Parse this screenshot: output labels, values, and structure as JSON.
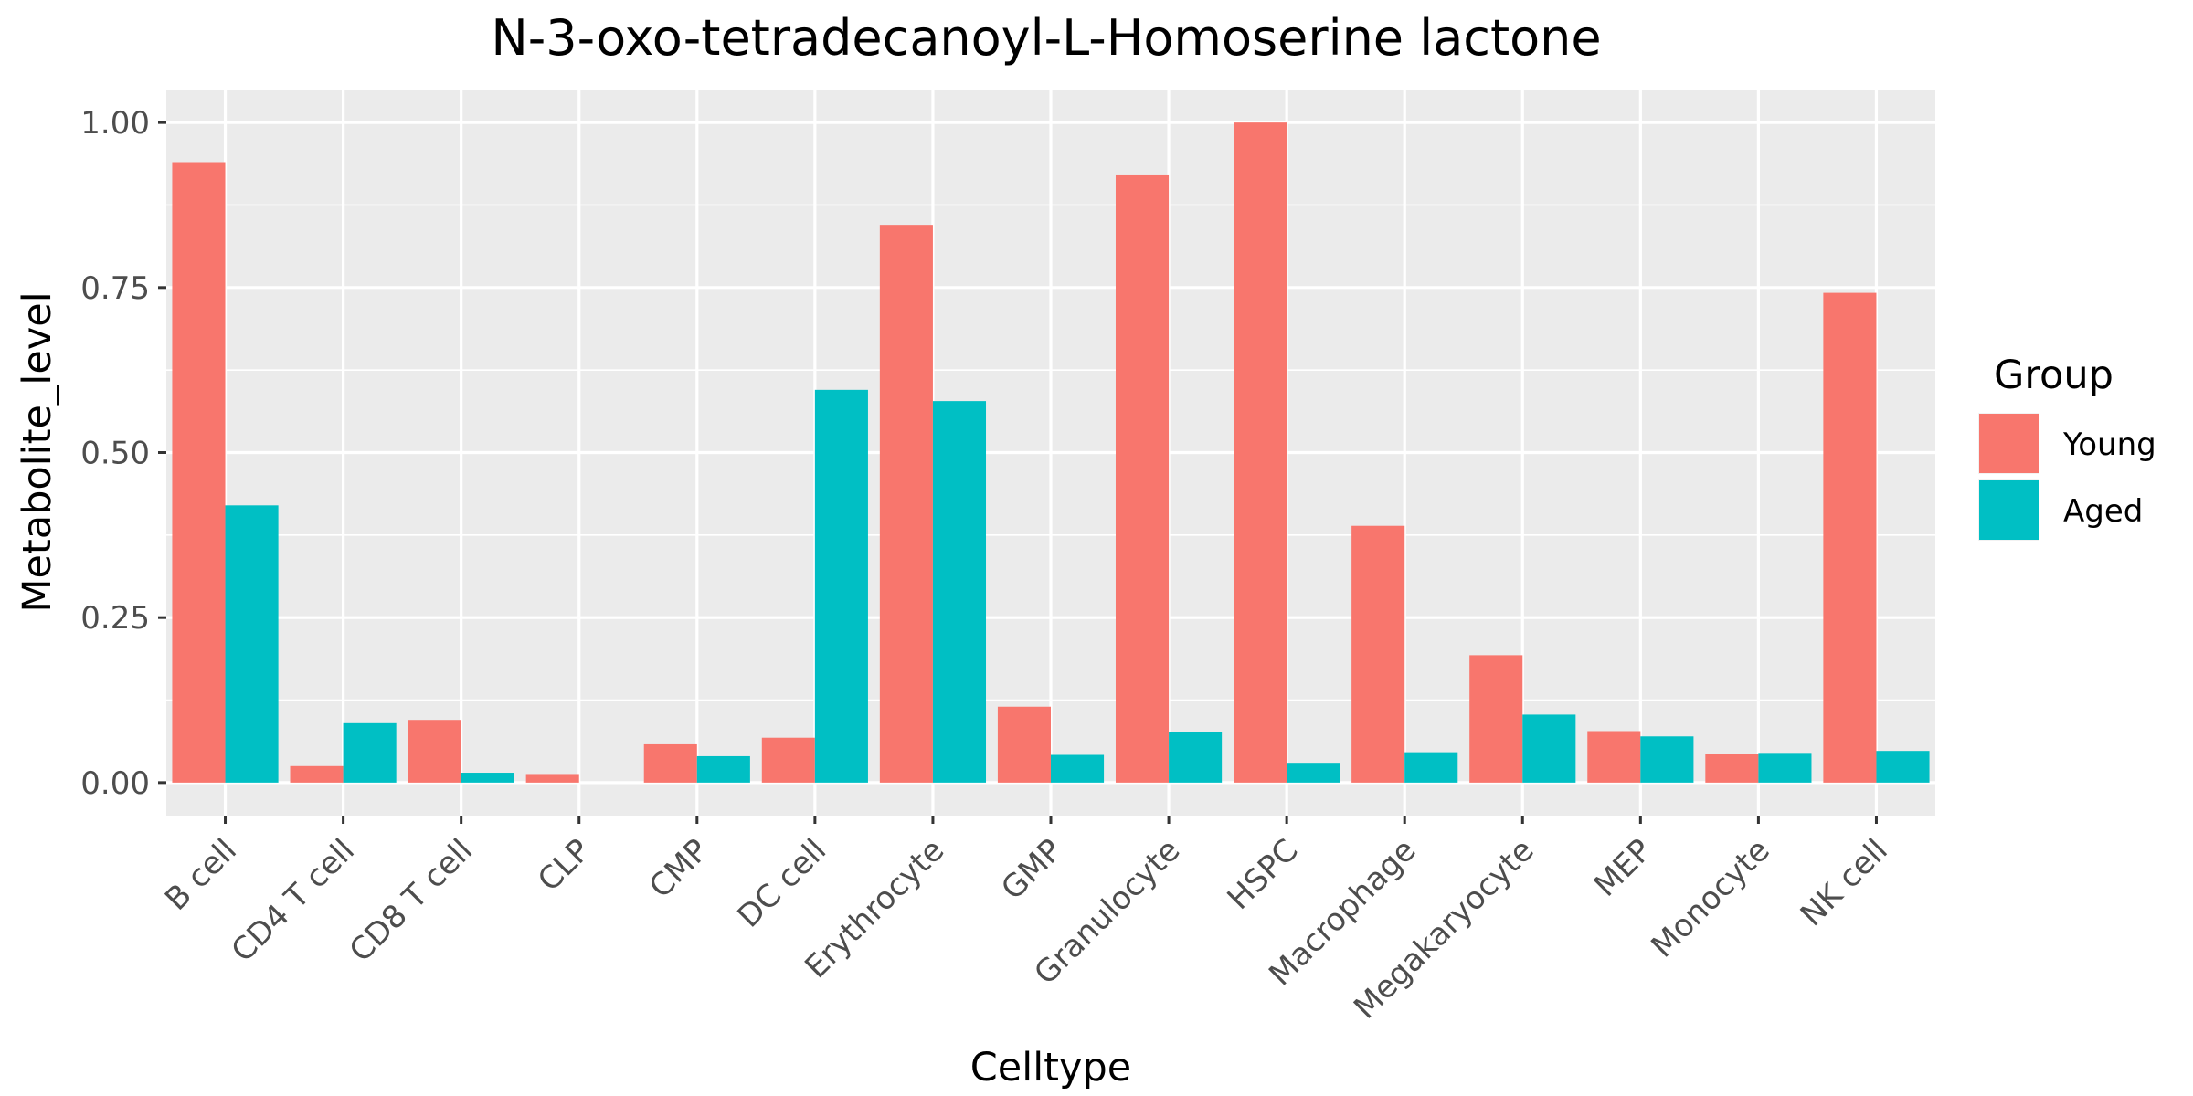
{
  "chart_data": {
    "type": "bar",
    "title": "N-3-oxo-tetradecanoyl-L-Homoserine lactone",
    "xlabel": "Celltype",
    "ylabel": "Metabolite_level",
    "ylim": [
      -0.05,
      1.05
    ],
    "yticks": [
      0.0,
      0.25,
      0.5,
      0.75,
      1.0
    ],
    "ytick_labels": [
      "0.00",
      "0.25",
      "0.50",
      "0.75",
      "1.00"
    ],
    "grid": true,
    "legend": {
      "title": "Group",
      "position": "right"
    },
    "categories": [
      "B cell",
      "CD4 T cell",
      "CD8 T cell",
      "CLP",
      "CMP",
      "DC cell",
      "Erythrocyte",
      "GMP",
      "Granulocyte",
      "HSPC",
      "Macrophage",
      "Megakaryocyte",
      "MEP",
      "Monocyte",
      "NK cell"
    ],
    "series": [
      {
        "name": "Young",
        "color": "#F8766D",
        "values": [
          0.94,
          0.025,
          0.095,
          0.013,
          0.058,
          0.068,
          0.845,
          0.115,
          0.92,
          1.0,
          0.389,
          0.193,
          0.078,
          0.043,
          0.742
        ]
      },
      {
        "name": "Aged",
        "color": "#00BFC4",
        "values": [
          0.42,
          0.09,
          0.015,
          0.0,
          0.04,
          0.595,
          0.578,
          0.042,
          0.077,
          0.03,
          0.046,
          0.103,
          0.07,
          0.045,
          0.048
        ]
      }
    ]
  }
}
